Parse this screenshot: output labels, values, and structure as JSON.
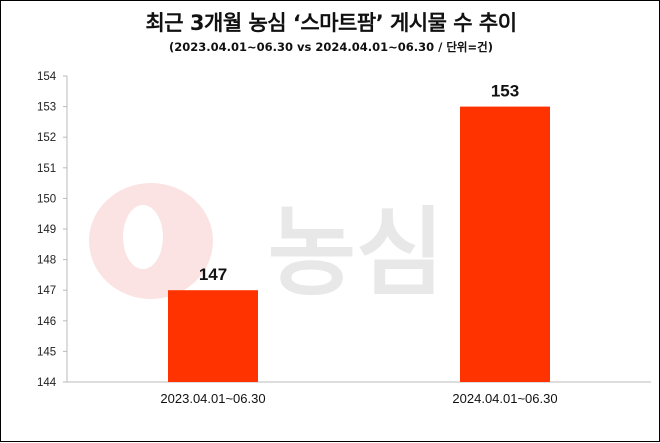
{
  "chart_data": {
    "type": "bar",
    "title": "최근 3개월 농심 ‘스마트팜’ 게시물 수 추이",
    "subtitle": "(2023.04.01~06.30 vs 2024.04.01~06.30 / 단위=건)",
    "categories": [
      "2023.04.01~06.30",
      "2024.04.01~06.30"
    ],
    "values": [
      147,
      153
    ],
    "data_labels": [
      "147",
      "153"
    ],
    "xlabel": "",
    "ylabel": "",
    "ylim": [
      144,
      154
    ],
    "yticks": [
      "144",
      "145",
      "146",
      "147",
      "148",
      "149",
      "150",
      "151",
      "152",
      "153",
      "154"
    ],
    "grid": false,
    "legend": "none",
    "bar_color": "#ff3300"
  },
  "watermark": {
    "text": "농심",
    "circle_color": "#fbe3e3",
    "text_color": "#e6e6e6"
  }
}
